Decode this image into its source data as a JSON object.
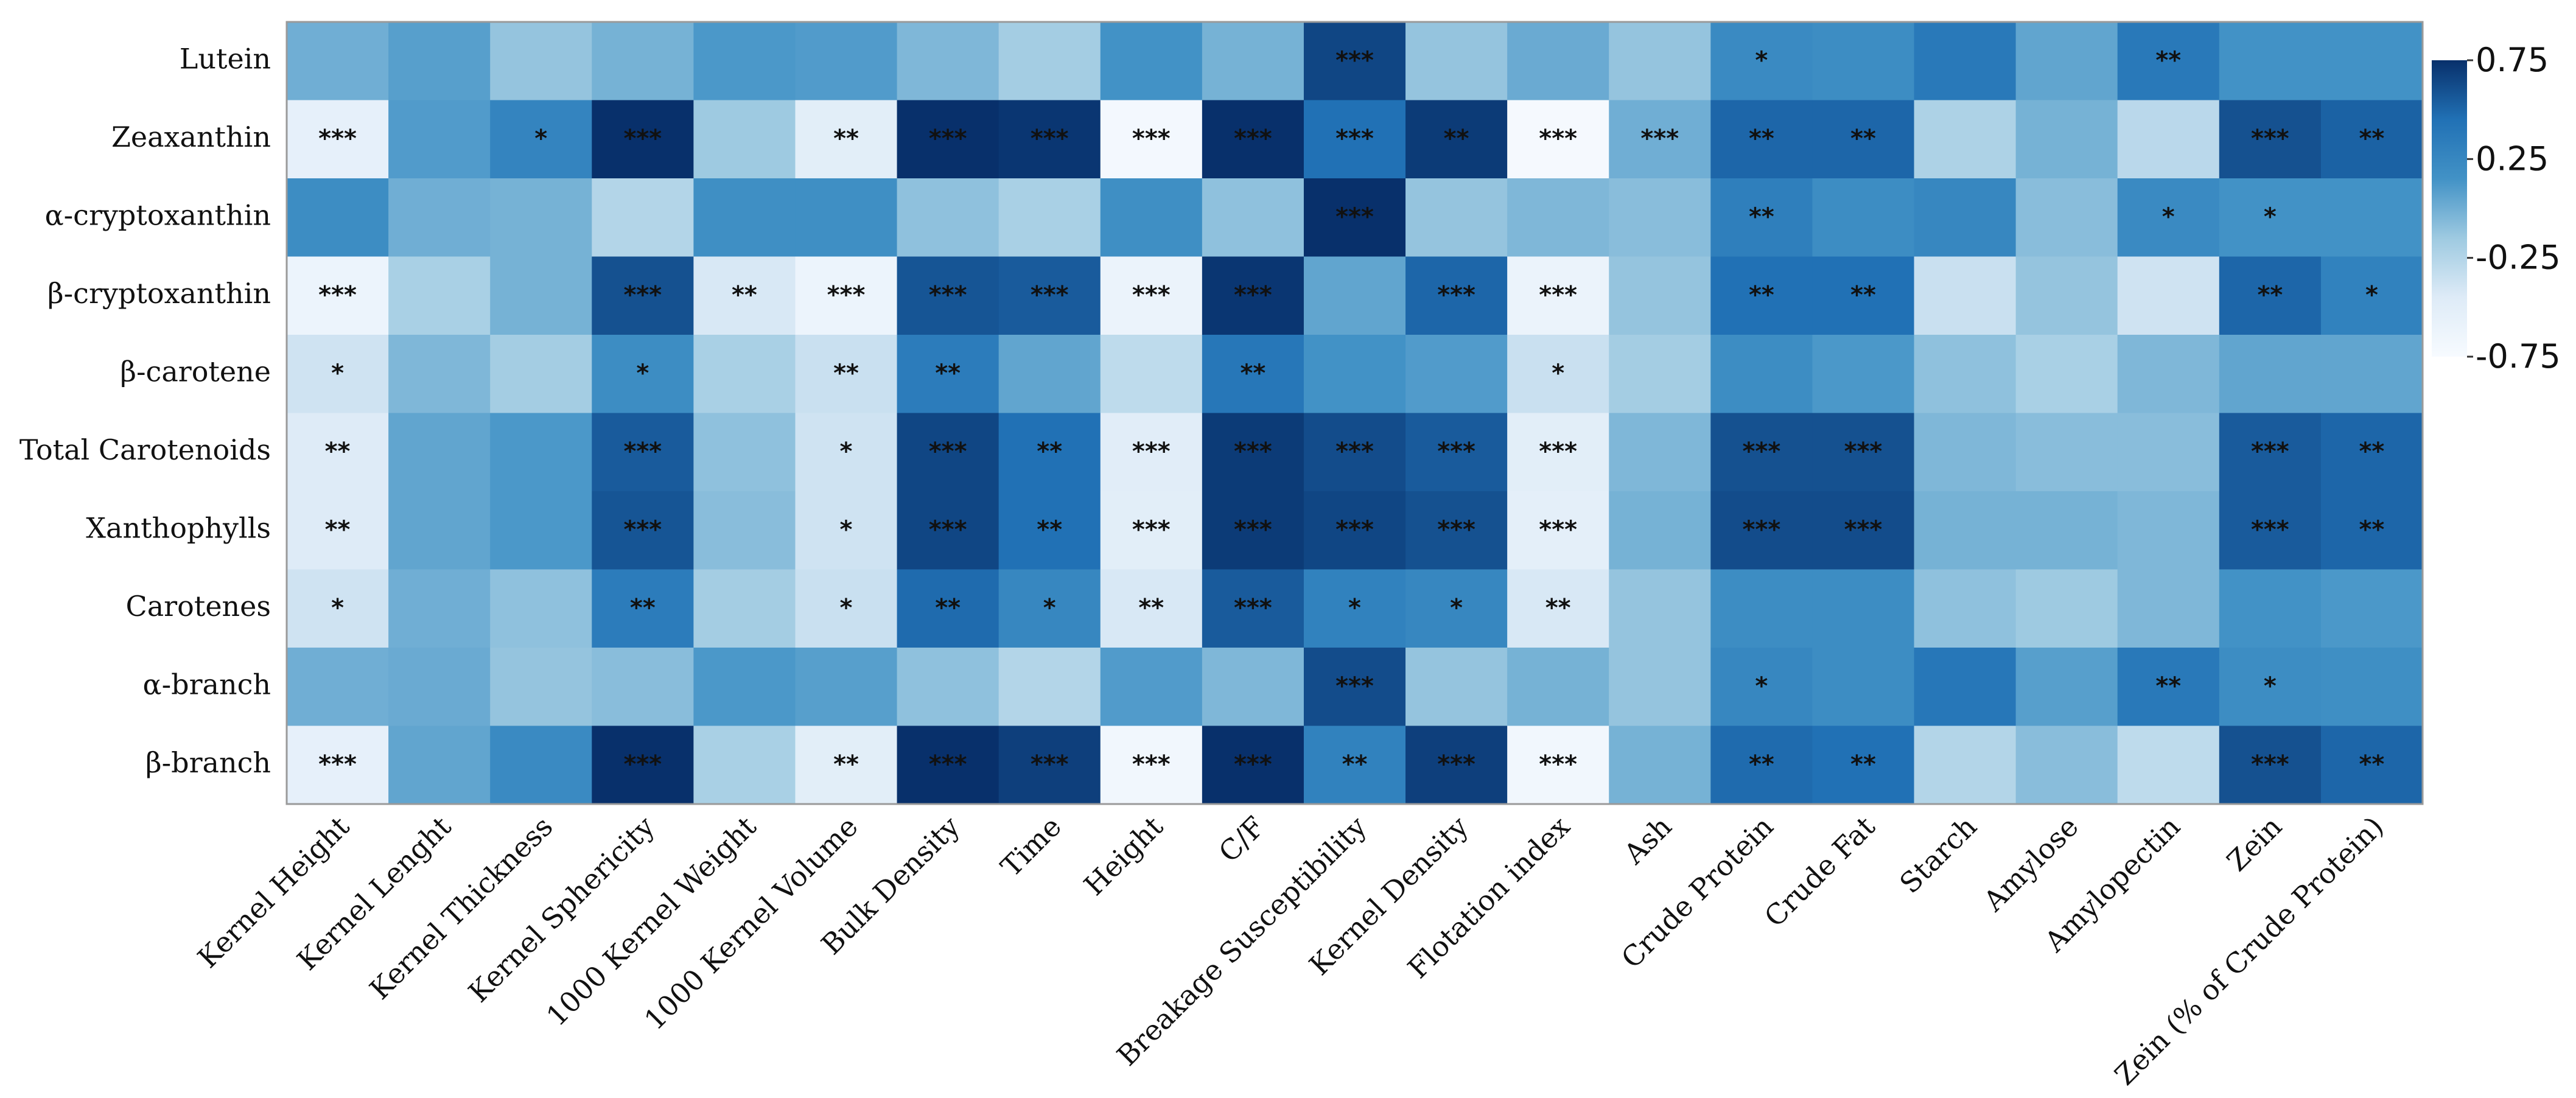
{
  "chart_data": {
    "type": "heatmap",
    "title": "",
    "xlabel": "",
    "ylabel": "",
    "rows": [
      "Lutein",
      "Zeaxanthin",
      "α-cryptoxanthin",
      "β-cryptoxanthin",
      "β-carotene",
      "Total Carotenoids",
      "Xanthophylls",
      "Carotenes",
      "α-branch",
      "β-branch"
    ],
    "columns": [
      "Kernel Height",
      "Kernel Lenght",
      "Kernel Thickness",
      "Kernel Sphericity",
      "1000 Kernel Weight",
      "1000 Kernel Volume",
      "Bulk Density",
      "Time",
      "Height",
      "C/F",
      "Breakage Susceptibility",
      "Kernel Density",
      "Flotation index",
      "Ash",
      "Crude Protein",
      "Crude Fat",
      "Starch",
      "Amylose",
      "Amylopectin",
      "Zein",
      "Zein (% of Crude Protein)"
    ],
    "values": [
      [
        0.0,
        0.08,
        -0.12,
        -0.02,
        0.12,
        0.1,
        -0.05,
        -0.18,
        0.15,
        -0.02,
        0.65,
        -0.12,
        0.02,
        -0.12,
        0.22,
        0.2,
        0.38,
        0.05,
        0.38,
        0.15,
        0.15
      ],
      [
        -0.55,
        0.1,
        0.28,
        0.78,
        -0.15,
        -0.5,
        0.85,
        0.72,
        -0.7,
        0.85,
        0.45,
        0.7,
        -0.72,
        0.0,
        0.5,
        0.5,
        -0.22,
        -0.02,
        -0.28,
        0.6,
        0.52
      ],
      [
        0.2,
        0.0,
        -0.02,
        -0.25,
        0.18,
        0.18,
        -0.1,
        -0.2,
        0.18,
        -0.1,
        0.8,
        -0.12,
        -0.05,
        -0.08,
        0.32,
        0.2,
        0.25,
        -0.08,
        0.22,
        0.15,
        0.15
      ],
      [
        -0.62,
        -0.2,
        -0.02,
        0.6,
        -0.42,
        -0.62,
        0.58,
        0.55,
        -0.6,
        0.72,
        0.05,
        0.5,
        -0.6,
        -0.12,
        0.45,
        0.45,
        -0.35,
        -0.12,
        -0.38,
        0.5,
        0.3
      ],
      [
        -0.38,
        -0.05,
        -0.18,
        0.2,
        -0.2,
        -0.35,
        0.35,
        0.05,
        -0.3,
        0.4,
        0.15,
        0.1,
        -0.35,
        -0.18,
        0.2,
        0.12,
        -0.1,
        -0.2,
        -0.05,
        0.05,
        0.05
      ],
      [
        -0.45,
        0.05,
        0.12,
        0.55,
        -0.1,
        -0.38,
        0.65,
        0.45,
        -0.48,
        0.7,
        0.62,
        0.55,
        -0.5,
        -0.05,
        0.6,
        0.6,
        -0.05,
        -0.08,
        -0.08,
        0.55,
        0.5
      ],
      [
        -0.45,
        0.05,
        0.12,
        0.58,
        -0.08,
        -0.38,
        0.65,
        0.45,
        -0.5,
        0.7,
        0.65,
        0.6,
        -0.52,
        -0.02,
        0.62,
        0.62,
        -0.02,
        -0.02,
        -0.05,
        0.55,
        0.5
      ],
      [
        -0.38,
        0.0,
        -0.1,
        0.35,
        -0.18,
        -0.35,
        0.48,
        0.25,
        -0.42,
        0.55,
        0.3,
        0.25,
        -0.42,
        -0.12,
        0.2,
        0.2,
        -0.1,
        -0.15,
        -0.05,
        0.15,
        0.12
      ],
      [
        0.0,
        0.02,
        -0.12,
        -0.08,
        0.12,
        0.08,
        -0.1,
        -0.25,
        0.1,
        -0.05,
        0.62,
        -0.12,
        -0.02,
        -0.12,
        0.25,
        0.2,
        0.4,
        0.08,
        0.38,
        0.2,
        0.18
      ],
      [
        -0.55,
        0.05,
        0.22,
        0.78,
        -0.2,
        -0.5,
        0.85,
        0.68,
        -0.68,
        0.88,
        0.3,
        0.68,
        -0.68,
        -0.02,
        0.48,
        0.45,
        -0.25,
        -0.08,
        -0.3,
        0.6,
        0.5
      ]
    ],
    "significance": [
      [
        "",
        "",
        "",
        "",
        "",
        "",
        "",
        "",
        "",
        "",
        "***",
        "",
        "",
        "",
        "*",
        "",
        "",
        "",
        "**",
        "",
        ""
      ],
      [
        "***",
        "",
        "*",
        "***",
        "",
        "**",
        "***",
        "***",
        "***",
        "***",
        "***",
        "**",
        "***",
        "***",
        "**",
        "**",
        "",
        "",
        "",
        "***",
        "**"
      ],
      [
        "",
        "",
        "",
        "",
        "",
        "",
        "",
        "",
        "",
        "",
        "***",
        "",
        "",
        "",
        "**",
        "",
        "",
        "",
        "*",
        "*",
        ""
      ],
      [
        "***",
        "",
        "",
        "***",
        "**",
        "***",
        "***",
        "***",
        "***",
        "***",
        "",
        "***",
        "***",
        "",
        "**",
        "**",
        "",
        "",
        "",
        "**",
        "*"
      ],
      [
        "*",
        "",
        "",
        "*",
        "",
        "**",
        "**",
        "",
        "",
        "**",
        "",
        "",
        "*",
        "",
        "",
        "",
        "",
        "",
        "",
        "",
        ""
      ],
      [
        "**",
        "",
        "",
        "***",
        "",
        "*",
        "***",
        "**",
        "***",
        "***",
        "***",
        "***",
        "***",
        "",
        "***",
        "***",
        "",
        "",
        "",
        "***",
        "**"
      ],
      [
        "**",
        "",
        "",
        "***",
        "",
        "*",
        "***",
        "**",
        "***",
        "***",
        "***",
        "***",
        "***",
        "",
        "***",
        "***",
        "",
        "",
        "",
        "***",
        "**"
      ],
      [
        "*",
        "",
        "",
        "**",
        "",
        "*",
        "**",
        "*",
        "**",
        "***",
        "*",
        "*",
        "**",
        "",
        "",
        "",
        "",
        "",
        "",
        "",
        ""
      ],
      [
        "",
        "",
        "",
        "",
        "",
        "",
        "",
        "",
        "",
        "",
        "***",
        "",
        "",
        "",
        "*",
        "",
        "",
        "",
        "**",
        "*",
        ""
      ],
      [
        "***",
        "",
        "",
        "***",
        "",
        "**",
        "***",
        "***",
        "***",
        "***",
        "**",
        "***",
        "***",
        "",
        "**",
        "**",
        "",
        "",
        "",
        "***",
        "**"
      ]
    ],
    "zlim": [
      -0.75,
      0.75
    ],
    "colorbar_ticks": [
      "0.75",
      "0.25",
      "-0.25",
      "-0.75"
    ],
    "colorscale": [
      "#f7fbff",
      "#deebf7",
      "#9ecae1",
      "#4292c6",
      "#2171b5",
      "#08306b"
    ]
  }
}
